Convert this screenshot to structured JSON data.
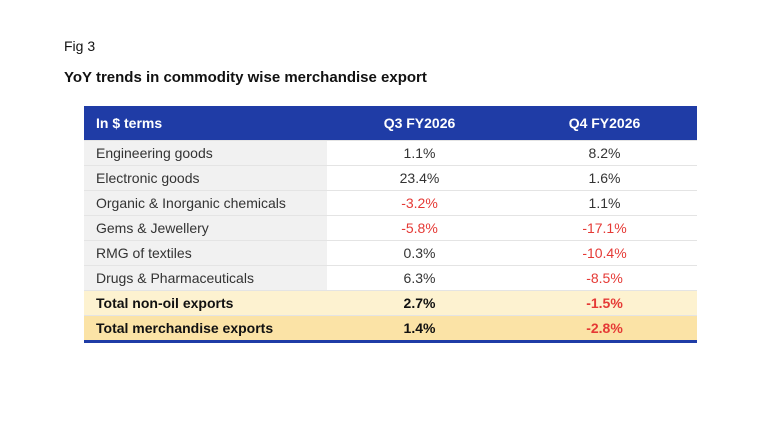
{
  "figure_label": "Fig 3",
  "title": "YoY trends in commodity wise merchandise export",
  "table": {
    "header": [
      "In $ terms",
      "Q3 FY2026",
      "Q4 FY2026"
    ],
    "rows": [
      [
        "Engineering goods",
        "1.1%",
        "8.2%"
      ],
      [
        "Electronic goods",
        "23.4%",
        "1.6%"
      ],
      [
        "Organic & Inorganic chemicals",
        "-3.2%",
        "1.1%"
      ],
      [
        "Gems & Jewellery",
        "-5.8%",
        "-17.1%"
      ],
      [
        "RMG of textiles",
        "0.3%",
        "-10.4%"
      ],
      [
        "Drugs & Pharmaceuticals",
        "6.3%",
        "-8.5%"
      ]
    ],
    "total_rows": [
      [
        "Total non-oil exports",
        "2.7%",
        "-1.5%"
      ],
      [
        "Total merchandise exports",
        "1.4%",
        "-2.8%"
      ]
    ],
    "header_color": "#1f3ca6",
    "negative_color": "#e53935"
  }
}
